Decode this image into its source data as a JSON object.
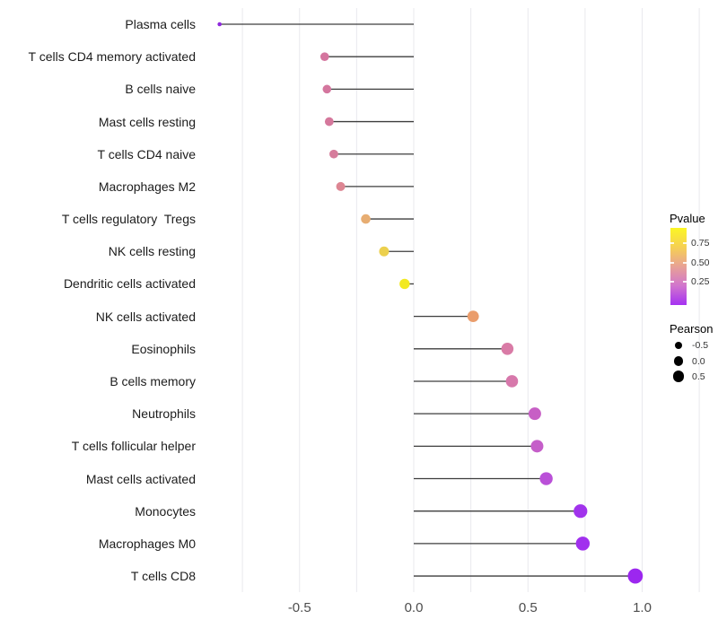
{
  "chart_data": {
    "type": "scatter",
    "variant": "lollipop",
    "title": "",
    "xlabel": "",
    "ylabel": "",
    "grid": "on",
    "legend_position": "right",
    "xlim": [
      -0.95,
      1.32
    ],
    "gridline_values": [
      -0.75,
      -0.5,
      -0.25,
      0,
      0.25,
      0.5,
      0.75,
      1.0,
      1.25
    ],
    "x_ticks": {
      "labels": [
        "-0.5",
        "0.0",
        "0.5",
        "1.0"
      ],
      "values": [
        -0.5,
        0.0,
        0.5,
        1.0
      ]
    },
    "points": [
      {
        "label": "Plasma cells",
        "pearson": -0.85,
        "color": "#8f29dd",
        "radius": 2.3
      },
      {
        "label": "T cells CD4 memory activated",
        "pearson": -0.39,
        "color": "#d4759e",
        "radius": 4.8
      },
      {
        "label": "B cells naive",
        "pearson": -0.38,
        "color": "#d4769e",
        "radius": 4.8
      },
      {
        "label": "Mast cells resting",
        "pearson": -0.37,
        "color": "#d5789c",
        "radius": 4.9
      },
      {
        "label": "T cells CD4 naive",
        "pearson": -0.35,
        "color": "#d67d9c",
        "radius": 4.9
      },
      {
        "label": "Macrophages M2",
        "pearson": -0.32,
        "color": "#dd8693",
        "radius": 5.0
      },
      {
        "label": "T cells regulatory  Tregs",
        "pearson": -0.21,
        "color": "#e7ad72",
        "radius": 5.3
      },
      {
        "label": "NK cells resting",
        "pearson": -0.13,
        "color": "#ecd04e",
        "radius": 5.5
      },
      {
        "label": "Dendritic cells activated",
        "pearson": -0.04,
        "color": "#f2e922",
        "radius": 5.7
      },
      {
        "label": "NK cells activated",
        "pearson": 0.26,
        "color": "#ea9d6c",
        "radius": 6.4
      },
      {
        "label": "Eosinophils",
        "pearson": 0.41,
        "color": "#d97ba6",
        "radius": 6.8
      },
      {
        "label": "B cells memory",
        "pearson": 0.43,
        "color": "#d778ab",
        "radius": 6.8
      },
      {
        "label": "Neutrophils",
        "pearson": 0.53,
        "color": "#c75fc5",
        "radius": 7.0
      },
      {
        "label": "T cells follicular helper",
        "pearson": 0.54,
        "color": "#c55ec9",
        "radius": 7.0
      },
      {
        "label": "Mast cells activated",
        "pearson": 0.58,
        "color": "#ba50d8",
        "radius": 7.2
      },
      {
        "label": "Monocytes",
        "pearson": 0.73,
        "color": "#a133ec",
        "radius": 7.6
      },
      {
        "label": "Macrophages M0",
        "pearson": 0.74,
        "color": "#a130ee",
        "radius": 7.7
      },
      {
        "label": "T cells CD8",
        "pearson": 0.97,
        "color": "#9c27ef",
        "radius": 8.4
      }
    ]
  },
  "legend": {
    "pvalue": {
      "title": "Pvalue",
      "tick_labels": [
        "0.75",
        "0.50",
        "0.25"
      ],
      "gradient_stops": [
        "#fbf625",
        "#f6d053",
        "#e8a295",
        "#d175cd",
        "#a531f2"
      ]
    },
    "pearson": {
      "title": "Pearson",
      "dot_color": "#000000",
      "items": [
        {
          "label": "-0.5",
          "radius": 4.2
        },
        {
          "label": "0.0",
          "radius": 5.2
        },
        {
          "label": "0.5",
          "radius": 6.3
        }
      ]
    }
  },
  "colors": {
    "background": "#ffffff",
    "grid": "#e9e9ee",
    "stem": "#3d3d3d",
    "axis_text_x": "#4d4d4d",
    "axis_text_y": "#1c1c1c"
  }
}
